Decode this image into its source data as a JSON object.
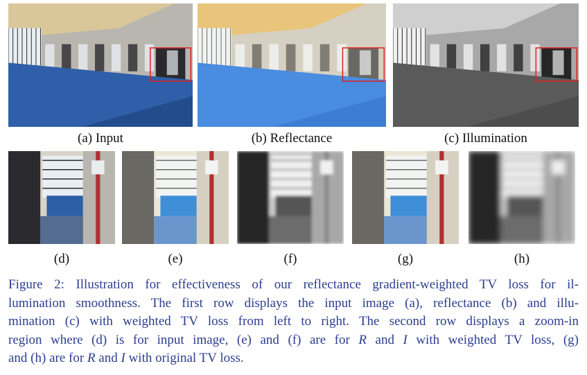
{
  "figure": {
    "top_labels": [
      "(a) Input",
      "(b) Reflectance",
      "(c) Illumination"
    ],
    "bottom_labels": [
      "(d)",
      "(e)",
      "(f)",
      "(g)",
      "(h)"
    ],
    "caption_lines": [
      [
        "Figure 2: Illustration for effectiveness of our reflectance gradient-weighted TV loss for il-"
      ],
      [
        "lumination smoothness. The first row displays the input image (a), reflectance (b) and illu-"
      ],
      [
        "mination (c) with weighted TV loss from left to right. The second row displays a zoom-in"
      ],
      [
        "region where (d) is for input image, (e) and (f) are for ",
        "R",
        " and ",
        "I",
        " with weighted TV loss, (g)"
      ],
      [
        "and (h) are for ",
        "R",
        " and ",
        "I",
        " with original TV loss."
      ]
    ]
  }
}
